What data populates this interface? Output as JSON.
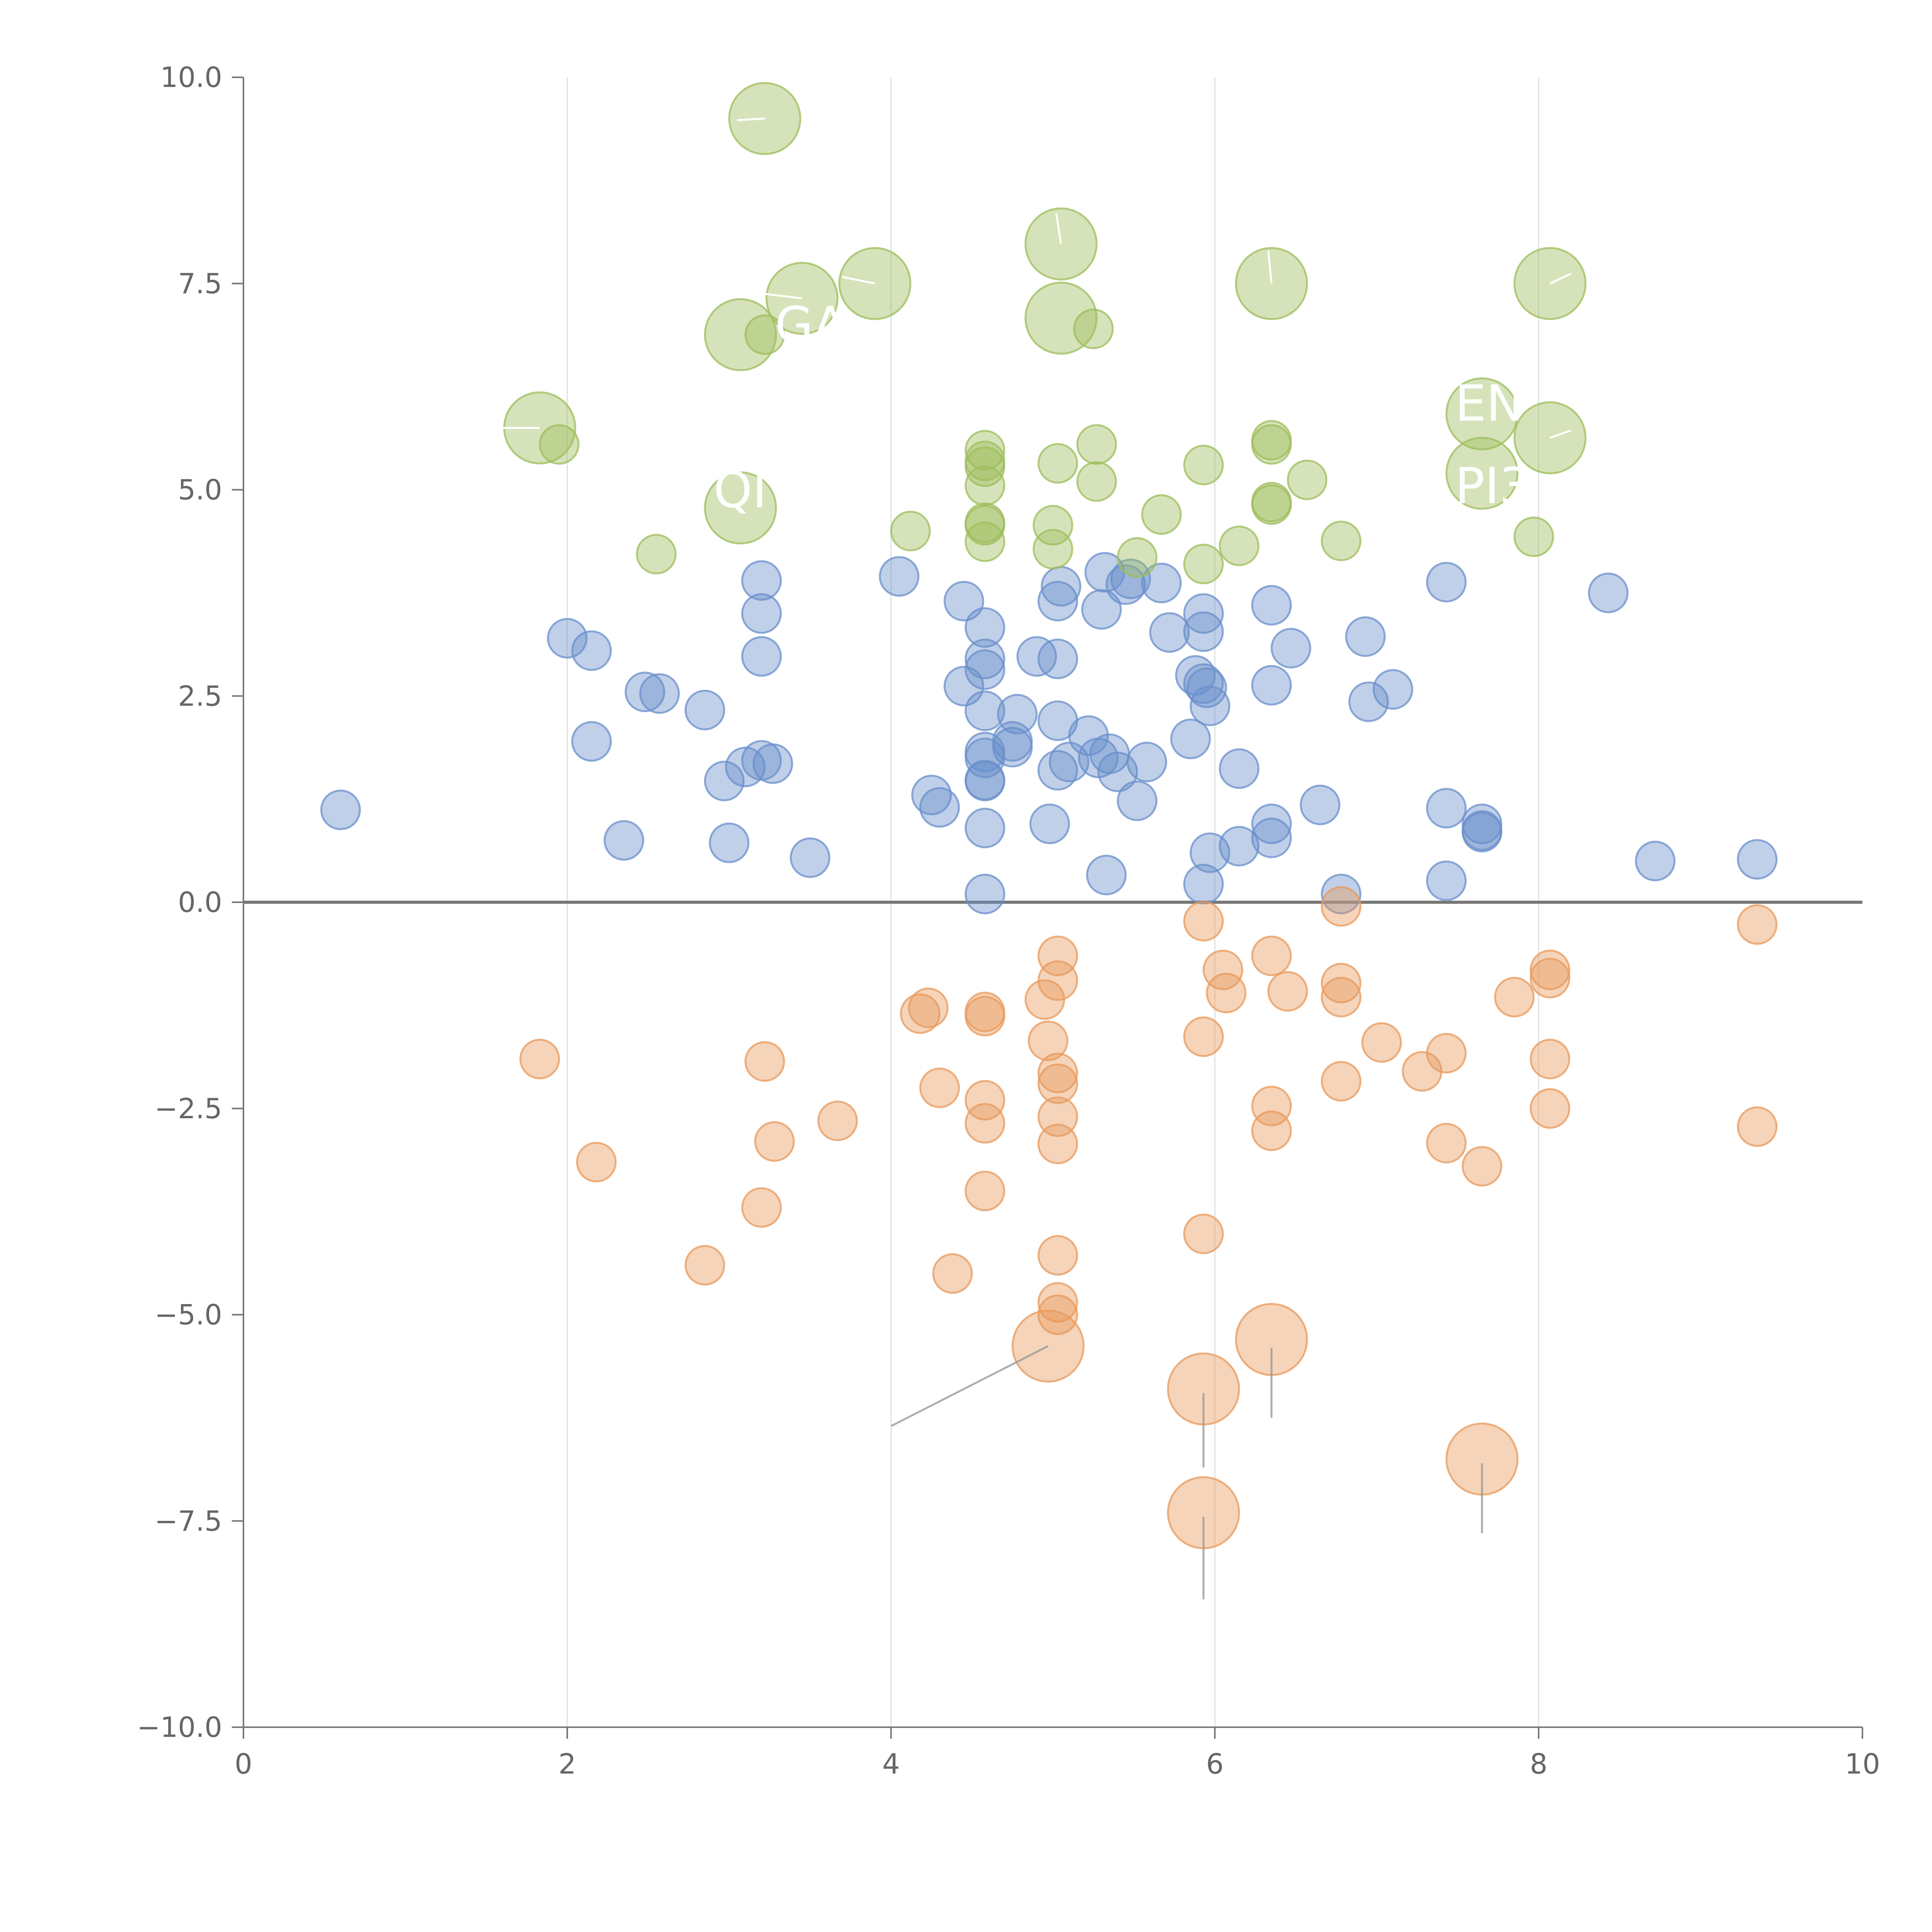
{
  "chart_data": {
    "type": "scatter",
    "title": "",
    "xlabel": "",
    "ylabel": "",
    "xlim": [
      0,
      10
    ],
    "ylim": [
      -10,
      10
    ],
    "x_ticks": [
      "0",
      "2",
      "4",
      "6",
      "8",
      "10"
    ],
    "y_ticks": [
      "10.0",
      "7.5",
      "5.0",
      "2.5",
      "0.0",
      "−2.5",
      "−5.0",
      "−7.5",
      "−10.0"
    ],
    "grid": "vertical lines at x = 2, 4, 6, 8",
    "colors": {
      "green": "#9dbd5b",
      "blue": "#6a8fcb",
      "orange": "#e8995b",
      "axis": "#777777",
      "grid": "#e0e0e0"
    },
    "series": [
      {
        "name": "blue",
        "color": "#6a8fcb",
        "points": [
          [
            0.6,
            1.12
          ],
          [
            2.0,
            3.2
          ],
          [
            2.15,
            3.05
          ],
          [
            2.15,
            1.95
          ],
          [
            2.35,
            0.75
          ],
          [
            2.48,
            2.55
          ],
          [
            2.57,
            2.53
          ],
          [
            2.85,
            2.33
          ],
          [
            2.97,
            1.47
          ],
          [
            3.0,
            0.72
          ],
          [
            3.1,
            1.64
          ],
          [
            3.2,
            1.72
          ],
          [
            3.27,
            1.68
          ],
          [
            3.2,
            3.9
          ],
          [
            3.2,
            3.5
          ],
          [
            3.2,
            2.98
          ],
          [
            3.5,
            0.54
          ],
          [
            4.05,
            3.95
          ],
          [
            4.25,
            1.3
          ],
          [
            4.3,
            1.15
          ],
          [
            4.45,
            2.62
          ],
          [
            4.45,
            3.65
          ],
          [
            4.58,
            3.33
          ],
          [
            4.58,
            2.95
          ],
          [
            4.58,
            2.82
          ],
          [
            4.58,
            2.32
          ],
          [
            4.58,
            1.82
          ],
          [
            4.58,
            1.75
          ],
          [
            4.58,
            1.48
          ],
          [
            4.58,
            1.47
          ],
          [
            4.58,
            0.9
          ],
          [
            4.58,
            0.1
          ],
          [
            4.75,
            1.95
          ],
          [
            4.75,
            1.88
          ],
          [
            4.78,
            2.28
          ],
          [
            4.9,
            2.98
          ],
          [
            4.98,
            0.95
          ],
          [
            5.03,
            2.95
          ],
          [
            5.03,
            2.2
          ],
          [
            5.03,
            1.6
          ],
          [
            5.03,
            3.65
          ],
          [
            5.05,
            3.83
          ],
          [
            5.1,
            1.7
          ],
          [
            5.22,
            2.02
          ],
          [
            5.28,
            1.75
          ],
          [
            5.3,
            3.55
          ],
          [
            5.32,
            4.0
          ],
          [
            5.33,
            0.33
          ],
          [
            5.35,
            1.8
          ],
          [
            5.4,
            1.58
          ],
          [
            5.45,
            3.85
          ],
          [
            5.48,
            3.92
          ],
          [
            5.52,
            1.23
          ],
          [
            5.58,
            1.7
          ],
          [
            5.67,
            3.87
          ],
          [
            5.72,
            3.27
          ],
          [
            5.85,
            1.98
          ],
          [
            5.88,
            2.75
          ],
          [
            5.93,
            2.65
          ],
          [
            5.93,
            3.28
          ],
          [
            5.93,
            3.5
          ],
          [
            5.95,
            2.6
          ],
          [
            5.97,
            2.38
          ],
          [
            5.93,
            0.22
          ],
          [
            5.97,
            0.6
          ],
          [
            6.15,
            1.62
          ],
          [
            6.15,
            0.68
          ],
          [
            6.35,
            3.6
          ],
          [
            6.35,
            2.63
          ],
          [
            6.35,
            0.95
          ],
          [
            6.35,
            0.78
          ],
          [
            6.47,
            3.08
          ],
          [
            6.65,
            1.18
          ],
          [
            6.78,
            0.1
          ],
          [
            6.93,
            3.22
          ],
          [
            6.95,
            2.43
          ],
          [
            7.1,
            2.58
          ],
          [
            7.43,
            3.88
          ],
          [
            7.43,
            1.14
          ],
          [
            7.43,
            0.26
          ],
          [
            7.65,
            0.95
          ],
          [
            7.65,
            0.87
          ],
          [
            7.65,
            0.85
          ],
          [
            8.43,
            3.75
          ],
          [
            8.72,
            0.5
          ],
          [
            9.35,
            0.52
          ]
        ]
      },
      {
        "name": "orange",
        "color": "#e8995b",
        "points": [
          [
            1.83,
            -1.9
          ],
          [
            2.18,
            -3.15
          ],
          [
            2.85,
            -4.4
          ],
          [
            3.22,
            -1.93
          ],
          [
            3.2,
            -3.7
          ],
          [
            3.28,
            -2.9
          ],
          [
            3.67,
            -2.65
          ],
          [
            4.18,
            -1.35
          ],
          [
            4.23,
            -1.28
          ],
          [
            4.3,
            -2.25
          ],
          [
            4.38,
            -4.5
          ],
          [
            4.58,
            -1.33
          ],
          [
            4.58,
            -1.38
          ],
          [
            4.58,
            -2.4
          ],
          [
            4.58,
            -2.68
          ],
          [
            4.58,
            -3.5
          ],
          [
            4.95,
            -1.18
          ],
          [
            4.97,
            -1.68
          ],
          [
            5.03,
            -0.65
          ],
          [
            5.03,
            -0.95
          ],
          [
            5.03,
            -2.07
          ],
          [
            5.03,
            -2.2
          ],
          [
            5.03,
            -2.6
          ],
          [
            5.03,
            -2.93
          ],
          [
            5.03,
            -4.28
          ],
          [
            5.03,
            -4.85
          ],
          [
            5.03,
            -5.0
          ],
          [
            5.93,
            -0.23
          ],
          [
            5.93,
            -1.63
          ],
          [
            5.93,
            -4.02
          ],
          [
            6.05,
            -0.82
          ],
          [
            6.07,
            -1.1
          ],
          [
            6.35,
            -0.65
          ],
          [
            6.35,
            -2.47
          ],
          [
            6.35,
            -2.77
          ],
          [
            6.45,
            -1.08
          ],
          [
            6.78,
            -0.05
          ],
          [
            6.78,
            -0.98
          ],
          [
            6.78,
            -1.15
          ],
          [
            6.78,
            -2.17
          ],
          [
            7.03,
            -1.7
          ],
          [
            7.28,
            -2.05
          ],
          [
            7.43,
            -1.83
          ],
          [
            7.43,
            -2.92
          ],
          [
            7.65,
            -3.2
          ],
          [
            7.85,
            -1.15
          ],
          [
            8.07,
            -0.82
          ],
          [
            8.07,
            -0.92
          ],
          [
            8.07,
            -1.9
          ],
          [
            8.07,
            -2.5
          ],
          [
            9.35,
            -0.27
          ],
          [
            9.35,
            -2.72
          ]
        ]
      },
      {
        "name": "green",
        "color": "#9dbd5b",
        "points": [
          [
            1.95,
            5.55
          ],
          [
            2.55,
            4.22
          ],
          [
            3.22,
            6.88
          ],
          [
            4.12,
            4.5
          ],
          [
            4.58,
            5.48
          ],
          [
            4.58,
            5.35
          ],
          [
            4.58,
            5.28
          ],
          [
            4.58,
            5.05
          ],
          [
            4.58,
            4.6
          ],
          [
            4.58,
            4.57
          ],
          [
            4.58,
            4.37
          ],
          [
            5.0,
            4.57
          ],
          [
            5.0,
            4.28
          ],
          [
            5.03,
            5.32
          ],
          [
            5.25,
            6.95
          ],
          [
            5.27,
            5.55
          ],
          [
            5.27,
            5.1
          ],
          [
            5.52,
            4.18
          ],
          [
            5.67,
            4.7
          ],
          [
            5.93,
            5.3
          ],
          [
            5.93,
            4.1
          ],
          [
            6.15,
            4.32
          ],
          [
            6.35,
            5.6
          ],
          [
            6.35,
            5.55
          ],
          [
            6.35,
            4.85
          ],
          [
            6.35,
            4.82
          ],
          [
            6.57,
            5.12
          ],
          [
            6.78,
            4.38
          ],
          [
            7.97,
            4.43
          ]
        ]
      },
      {
        "name": "green-labeled",
        "color": "#9dbd5b",
        "points": [
          [
            3.22,
            9.5
          ],
          [
            3.45,
            7.32
          ],
          [
            3.07,
            6.88
          ],
          [
            3.9,
            7.5
          ],
          [
            5.05,
            7.98
          ],
          [
            5.05,
            7.08
          ],
          [
            1.83,
            5.75
          ],
          [
            3.07,
            4.78
          ],
          [
            6.35,
            7.5
          ],
          [
            8.07,
            7.5
          ],
          [
            7.65,
            5.92
          ],
          [
            7.65,
            5.2
          ],
          [
            8.07,
            5.63
          ]
        ]
      },
      {
        "name": "orange-labeled",
        "color": "#e8995b",
        "points": [
          [
            4.97,
            -5.38
          ],
          [
            6.35,
            -5.3
          ],
          [
            5.93,
            -5.9
          ],
          [
            5.93,
            -7.4
          ],
          [
            7.65,
            -6.75
          ]
        ]
      }
    ],
    "annotations": [
      "GA",
      "QI",
      "EN",
      "PI3"
    ]
  }
}
